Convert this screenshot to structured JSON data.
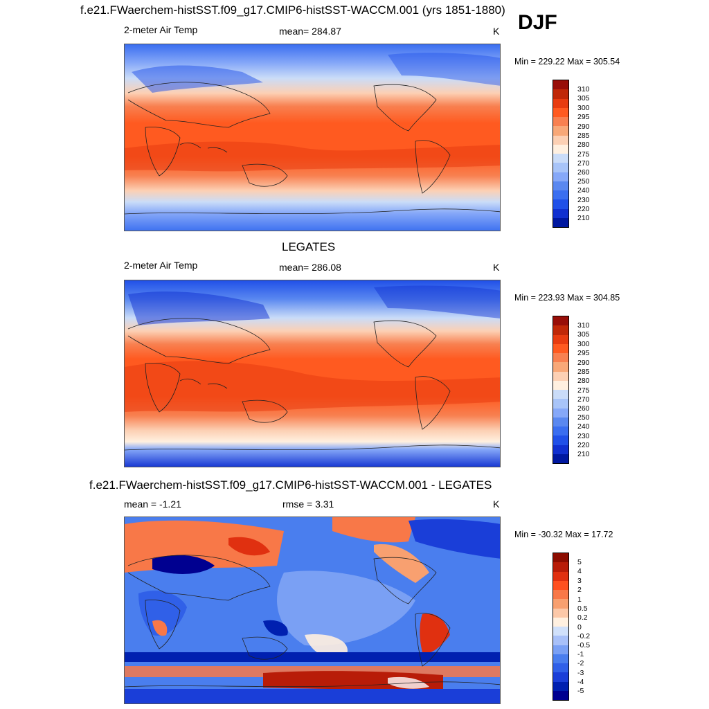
{
  "header": {
    "case_title": "f.e21.FWaerchem-histSST.f09_g17.CMIP6-histSST-WACCM.001 (yrs 1851-1880)",
    "season": "DJF"
  },
  "colors": {
    "abs_scale": [
      "#000080",
      "#0018a0",
      "#1030d0",
      "#2050e8",
      "#3a6ef0",
      "#5a88f0",
      "#86a8f8",
      "#a8c4f8",
      "#cadcf8",
      "#fff0e0",
      "#fcd0b4",
      "#f8a878",
      "#f88050",
      "#ff5a20",
      "#e83c10",
      "#c02808",
      "#980e08"
    ],
    "diff_scale": [
      "#000090",
      "#0020b0",
      "#1a3ed8",
      "#3060e8",
      "#4a7eee",
      "#7aa0f4",
      "#a8c0f8",
      "#d0e0fa",
      "#ffffff",
      "#fff0e0",
      "#fcc8a8",
      "#f8a070",
      "#f87848",
      "#ff5020",
      "#e03010",
      "#b81c08",
      "#8c0c00"
    ]
  },
  "panels": [
    {
      "id": "model",
      "variable": "2-meter Air Temp",
      "stat_text": "mean= 284.87",
      "unit": "K",
      "minmax": "Min = 229.22 Max = 305.54",
      "colorbar_labels": [
        "310",
        "305",
        "300",
        "295",
        "290",
        "285",
        "280",
        "275",
        "270",
        "260",
        "250",
        "240",
        "230",
        "220",
        "210"
      ]
    },
    {
      "id": "obs",
      "title": "LEGATES",
      "variable": "2-meter Air Temp",
      "stat_text": "mean= 286.08",
      "unit": "K",
      "minmax": "Min = 223.93 Max = 304.85",
      "colorbar_labels": [
        "310",
        "305",
        "300",
        "295",
        "290",
        "285",
        "280",
        "275",
        "270",
        "260",
        "250",
        "240",
        "230",
        "220",
        "210"
      ]
    },
    {
      "id": "diff",
      "title": "f.e21.FWaerchem-histSST.f09_g17.CMIP6-histSST-WACCM.001 - LEGATES",
      "mean_text": "mean =  -1.21",
      "rmse_text": "rmse =   3.31",
      "unit": "K",
      "minmax": "Min = -30.32 Max =  17.72",
      "colorbar_labels": [
        "5",
        "4",
        "3",
        "2",
        "1",
        "0.5",
        "0.2",
        "0",
        "-0.2",
        "-0.5",
        "-1",
        "-2",
        "-3",
        "-4",
        "-5"
      ]
    }
  ]
}
